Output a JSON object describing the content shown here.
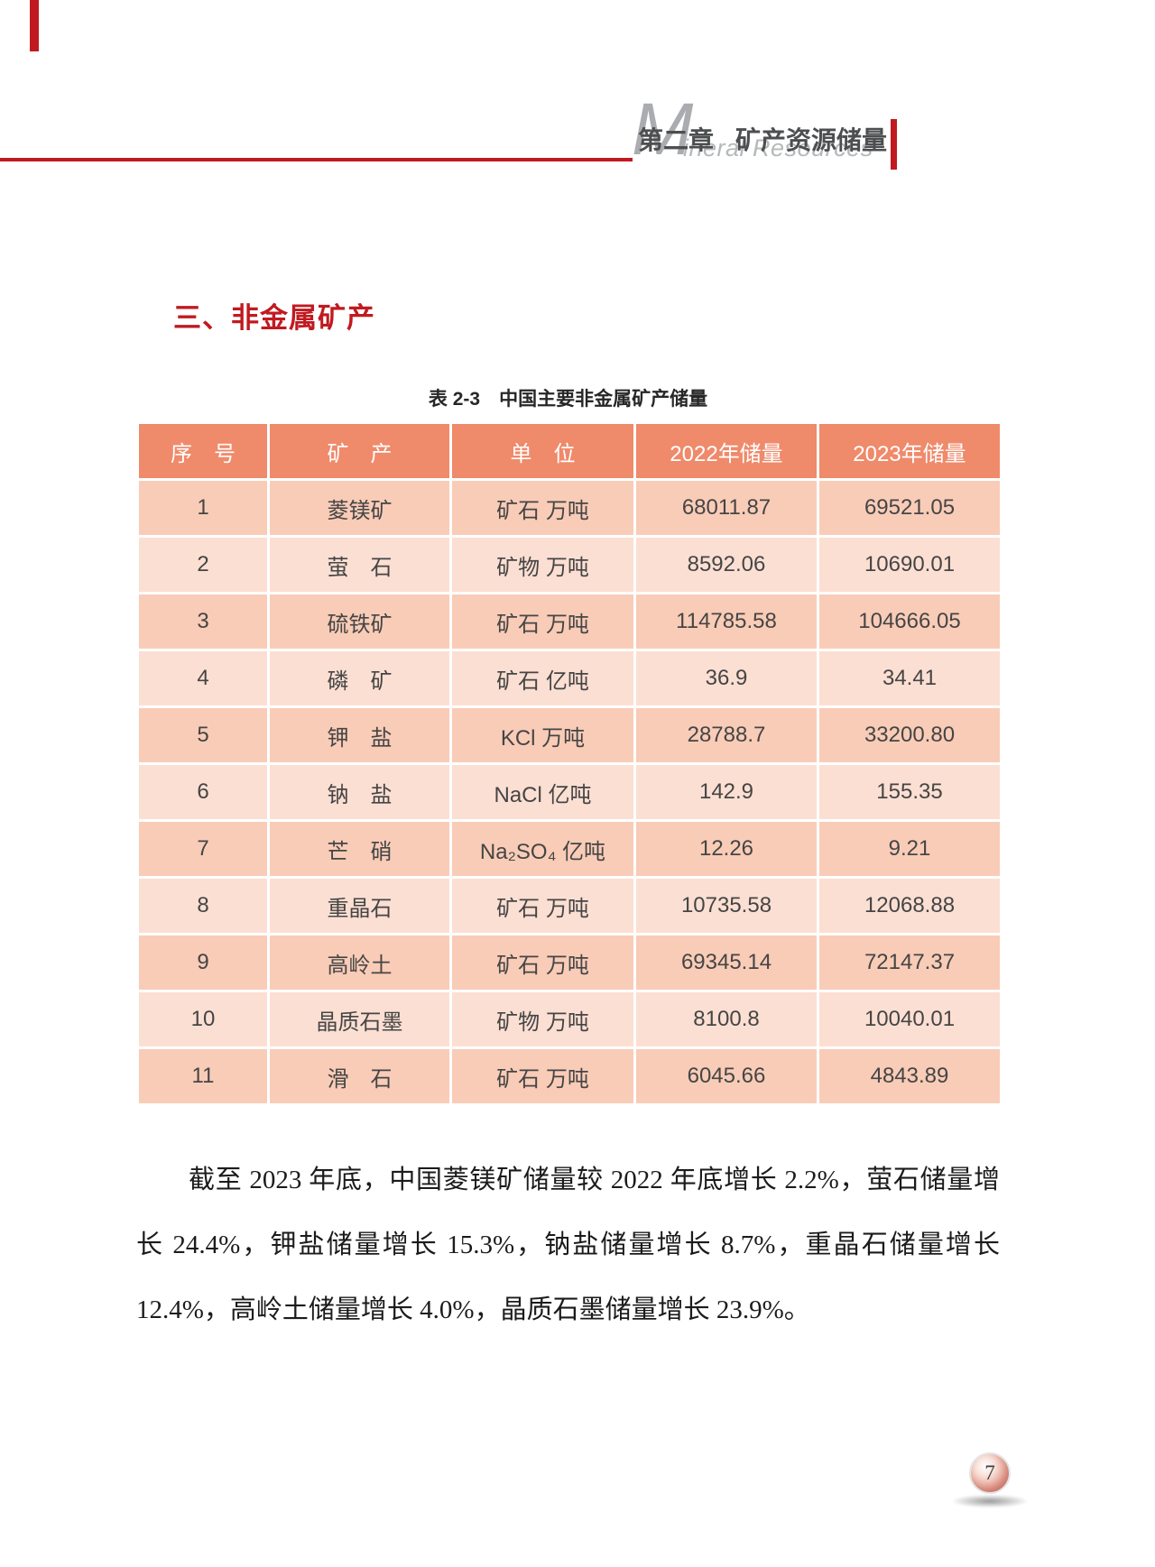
{
  "header": {
    "big_letter": "M",
    "subtitle": "ineral Resources",
    "chapter": "第二章",
    "chapter_title": "矿产资源储量"
  },
  "section": {
    "title": "三、非金属矿产"
  },
  "table": {
    "caption": "表 2-3　中国主要非金属矿产储量",
    "columns": [
      "序　号",
      "矿　产",
      "单　位",
      "2022年储量",
      "2023年储量"
    ],
    "rows": [
      [
        "1",
        "菱镁矿",
        "矿石 万吨",
        "68011.87",
        "69521.05"
      ],
      [
        "2",
        "萤　石",
        "矿物 万吨",
        "8592.06",
        "10690.01"
      ],
      [
        "3",
        "硫铁矿",
        "矿石 万吨",
        "114785.58",
        "104666.05"
      ],
      [
        "4",
        "磷　矿",
        "矿石 亿吨",
        "36.9",
        "34.41"
      ],
      [
        "5",
        "钾　盐",
        "KCl 万吨",
        "28788.7",
        "33200.80"
      ],
      [
        "6",
        "钠　盐",
        "NaCl 亿吨",
        "142.9",
        "155.35"
      ],
      [
        "7",
        "芒　硝",
        "Na₂SO₄ 亿吨",
        "12.26",
        "9.21"
      ],
      [
        "8",
        "重晶石",
        "矿石 万吨",
        "10735.58",
        "12068.88"
      ],
      [
        "9",
        "高岭土",
        "矿石 万吨",
        "69345.14",
        "72147.37"
      ],
      [
        "10",
        "晶质石墨",
        "矿物 万吨",
        "8100.8",
        "10040.01"
      ],
      [
        "11",
        "滑　石",
        "矿石 万吨",
        "6045.66",
        "4843.89"
      ]
    ]
  },
  "paragraph": "截至 2023 年底，中国菱镁矿储量较 2022 年底增长 2.2%，萤石储量增长 24.4%，钾盐储量增长 15.3%，钠盐储量增长 8.7%，重晶石储量增长 12.4%，高岭土储量增长 4.0%，晶质石墨储量增长 23.9%。",
  "page_number": "7",
  "colors": {
    "accent_red": "#C01A20",
    "header_fill": "#EF8A6B",
    "row_odd_fill": "#F9CCB7",
    "row_even_fill": "#FCDFD3",
    "header_text": "#FFFFFF",
    "watermark_gray": "#AAACAF",
    "chapter_text": "#4D4E50"
  }
}
